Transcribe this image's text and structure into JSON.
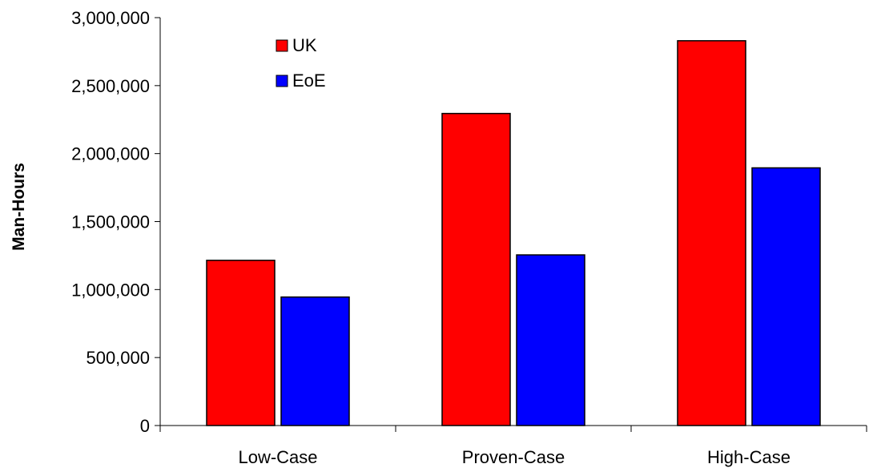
{
  "chart_data": {
    "type": "bar",
    "title": "",
    "xlabel": "",
    "ylabel": "Man-Hours",
    "categories": [
      "Low-Case",
      "Proven-Case",
      "High-Case"
    ],
    "series": [
      {
        "name": "UK",
        "color": "#FF0000",
        "values": [
          1215000,
          2295000,
          2830000
        ]
      },
      {
        "name": "EoE",
        "color": "#0000FF",
        "values": [
          945000,
          1255000,
          1895000
        ]
      }
    ],
    "ylim": [
      0,
      3000000
    ],
    "yticks": [
      {
        "value": 0,
        "label": "0"
      },
      {
        "value": 500000,
        "label": "500,000"
      },
      {
        "value": 1000000,
        "label": "1,000,000"
      },
      {
        "value": 1500000,
        "label": "1,500,000"
      },
      {
        "value": 2000000,
        "label": "2,000,000"
      },
      {
        "value": 2500000,
        "label": "2,500,000"
      },
      {
        "value": 3000000,
        "label": "3,000,000"
      }
    ],
    "grid": false,
    "legend": "top-left"
  }
}
